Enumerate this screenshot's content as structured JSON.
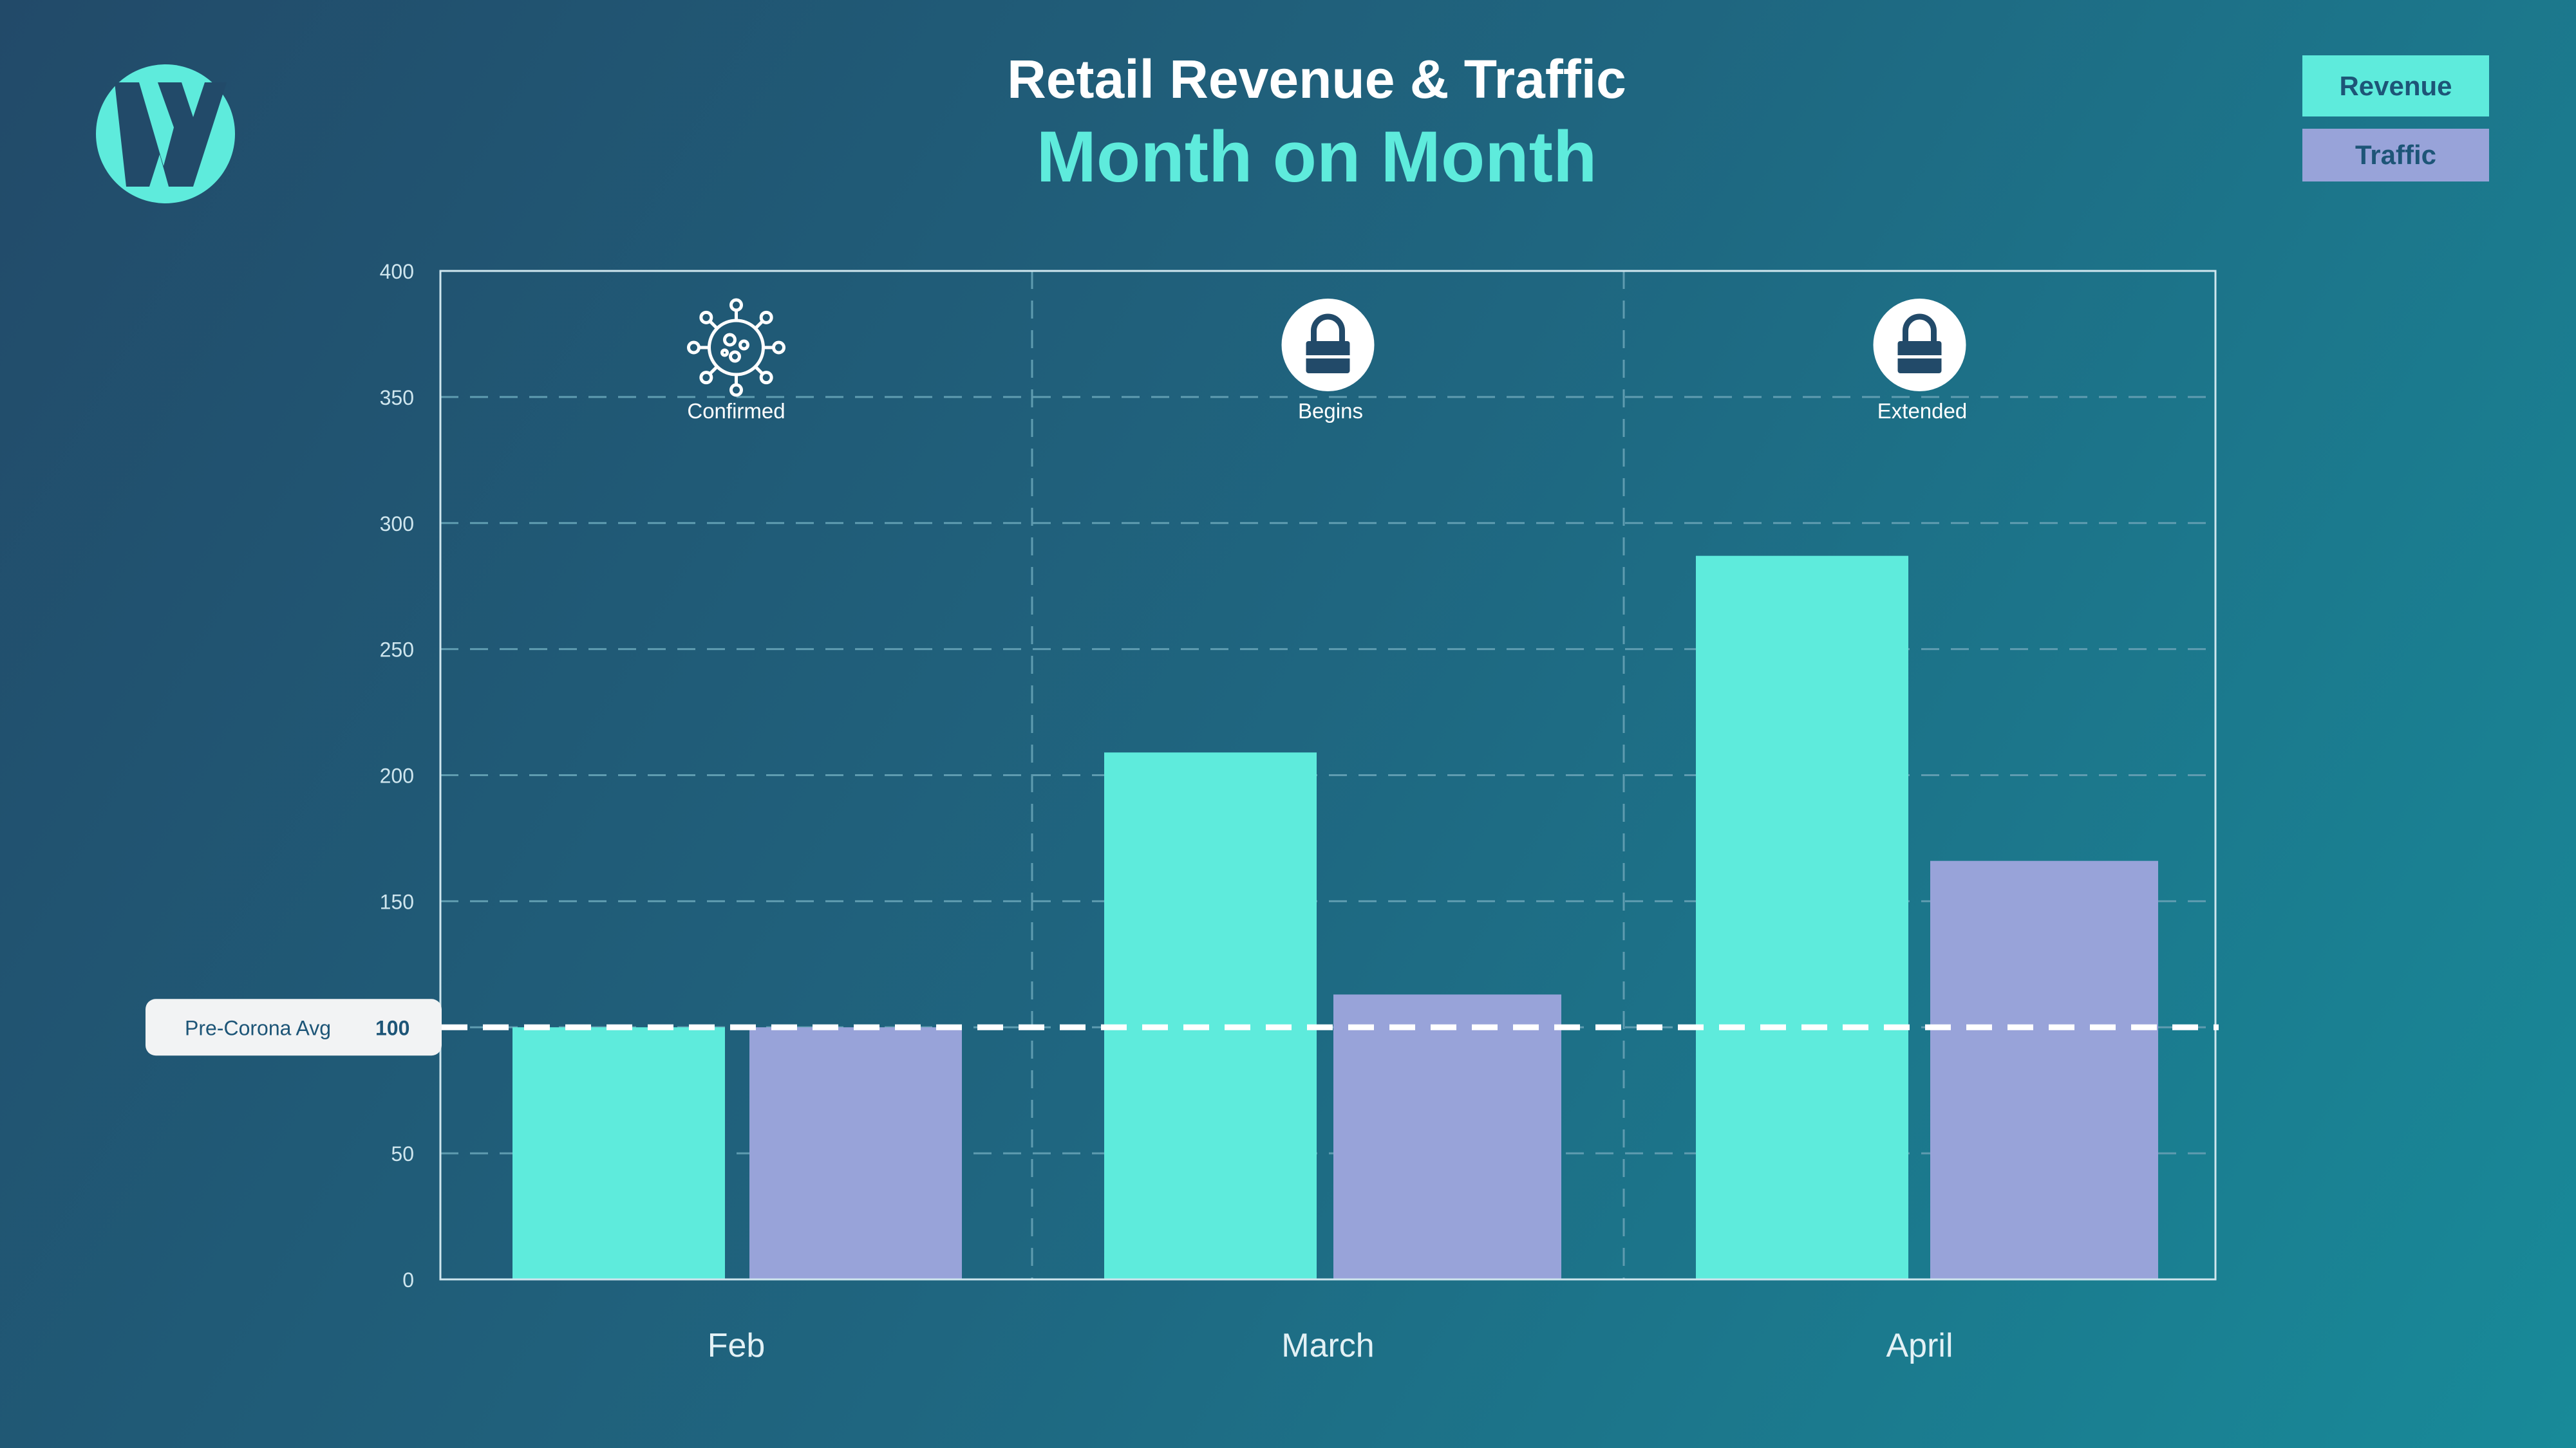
{
  "colors": {
    "revenue": "#5eebdc",
    "traffic": "#98a3d9",
    "title": "#ffffff",
    "subtitle": "#5eebdc",
    "axis": "#cfe6ee",
    "grid": "#5f9cb0",
    "avg_line": "#ffffff",
    "label_text": "#1d5577"
  },
  "logo": {
    "icon": "w-logo-icon"
  },
  "header": {
    "title": "Retail Revenue & Traffic",
    "subtitle": "Month on Month"
  },
  "legend": [
    {
      "label": "Revenue",
      "color": "#5eebdc"
    },
    {
      "label": "Traffic",
      "color": "#98a3d9"
    }
  ],
  "reference": {
    "label": "Pre-Corona Avg",
    "value": 100,
    "value_label": "100"
  },
  "events": [
    {
      "icon": "virus-icon",
      "label": "Confirmed"
    },
    {
      "icon": "lock-icon",
      "label": "Begins"
    },
    {
      "icon": "lock-icon",
      "label": "Extended"
    }
  ],
  "chart_data": {
    "type": "bar",
    "title": "Retail Revenue & Traffic",
    "subtitle": "Month on Month",
    "categories": [
      "Feb",
      "March",
      "April"
    ],
    "series": [
      {
        "name": "Revenue",
        "values": [
          100,
          209,
          287
        ]
      },
      {
        "name": "Traffic",
        "values": [
          100,
          113,
          166
        ]
      }
    ],
    "ylim": [
      0,
      400
    ],
    "yticks": [
      0,
      50,
      100,
      150,
      200,
      250,
      300,
      350,
      400
    ],
    "ytick_labels": [
      "0",
      "50",
      "",
      "150",
      "200",
      "250",
      "300",
      "350",
      "400"
    ],
    "grid": true,
    "legend_position": "top-right"
  }
}
